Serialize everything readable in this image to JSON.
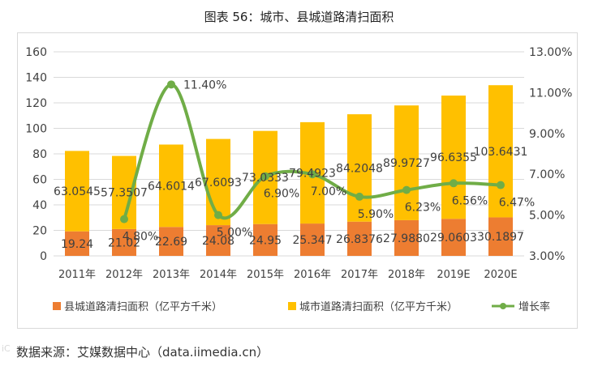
{
  "title": "图表 56：城市、县城道路清扫面积",
  "source": "数据来源：艾媒数据中心（data.iimedia.cn）",
  "watermark": "iC",
  "colors": {
    "county": "#ED7D31",
    "city": "#FFC000",
    "growth": "#70AD47",
    "grid": "#d9d9d9",
    "text": "#404040"
  },
  "chart_data": {
    "type": "bar",
    "stacked": true,
    "categories": [
      "2011年",
      "2012年",
      "2013年",
      "2014年",
      "2015年",
      "2016年",
      "2017年",
      "2018年",
      "2019E",
      "2020E"
    ],
    "series": [
      {
        "name": "县城道路清扫面积（亿平方千米）",
        "axis": "left",
        "values": [
          19.24,
          21.02,
          22.69,
          24.08,
          24.95,
          25.347,
          26.8376,
          27.988,
          29.0603,
          30.1897
        ],
        "labels": [
          "19.24",
          "21.02",
          "22.69",
          "24.08",
          "24.95",
          "25.347",
          "26.8376",
          "27.9880",
          "29.0603",
          "30.1897"
        ]
      },
      {
        "name": "城市道路清扫面积（亿平方千米）",
        "axis": "left",
        "values": [
          63.0545,
          57.3507,
          64.6014,
          67.6093,
          73.0333,
          79.4923,
          84.2048,
          89.9727,
          96.6355,
          103.6431
        ],
        "labels": [
          "63.0545",
          "57.3507",
          "64.6014",
          "67.6093",
          "73.0333",
          "79.4923",
          "84.2048",
          "89.9727",
          "96.6355",
          "103.6431"
        ]
      },
      {
        "name": "增长率",
        "type": "line",
        "axis": "right",
        "values": [
          null,
          4.8,
          11.4,
          5.0,
          6.9,
          7.0,
          5.9,
          6.23,
          6.56,
          6.47
        ],
        "labels": [
          "",
          "4.80%",
          "11.40%",
          "5.00%",
          "6.90%",
          "7.00%",
          "5.90%",
          "6.23%",
          "6.56%",
          "6.47%"
        ]
      }
    ],
    "y_left": {
      "min": 0,
      "max": 160,
      "step": 20,
      "ticks": [
        "0",
        "20",
        "40",
        "60",
        "80",
        "100",
        "120",
        "140",
        "160"
      ]
    },
    "y_right": {
      "min": 3,
      "max": 13,
      "step": 2,
      "ticks": [
        "3.00%",
        "5.00%",
        "7.00%",
        "9.00%",
        "11.00%",
        "13.00%"
      ]
    },
    "grid": true,
    "legend_position": "bottom"
  }
}
